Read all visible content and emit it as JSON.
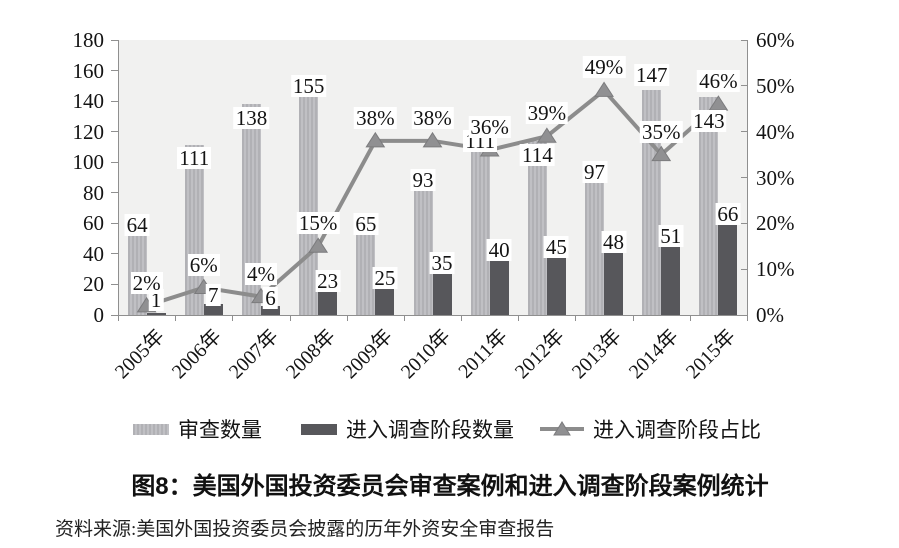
{
  "figure": {
    "title": "图8：美国外国投资委员会审查案例和进入调查阶段案例统计",
    "source": "资料来源:美国外国投资委员会披露的历年外资安全审查报告"
  },
  "legend": [
    {
      "label": "审查数量",
      "swatch": "light-bar"
    },
    {
      "label": "进入调查阶段数量",
      "swatch": "dark-bar"
    },
    {
      "label": "进入调查阶段占比",
      "swatch": "line-triangle-marker"
    }
  ],
  "chart_data": {
    "type": "bar",
    "subtype": "combo-bar-line",
    "categories": [
      "2005年",
      "2006年",
      "2007年",
      "2008年",
      "2009年",
      "2010年",
      "2011年",
      "2012年",
      "2013年",
      "2014年",
      "2015年"
    ],
    "series": [
      {
        "name": "审查数量",
        "type": "bar",
        "axis": "left",
        "values": [
          64,
          111,
          138,
          155,
          65,
          93,
          111,
          114,
          97,
          147,
          143
        ],
        "value_labels": [
          "64",
          "111",
          "138",
          "155",
          "65",
          "93",
          "111",
          "114",
          "97",
          "147",
          "143"
        ],
        "label_dy": [
          8,
          13,
          14,
          8,
          8,
          7,
          -4,
          14,
          5,
          -15,
          24
        ]
      },
      {
        "name": "进入调查阶段数量",
        "type": "bar",
        "axis": "left",
        "values": [
          1,
          7,
          6,
          23,
          25,
          35,
          40,
          45,
          48,
          51,
          66
        ],
        "value_labels": [
          "1",
          "7",
          "6",
          "23",
          "25",
          "35",
          "40",
          "45",
          "48",
          "51",
          "66"
        ],
        "label_dy": [
          -13,
          -9,
          -8,
          1,
          1,
          1,
          -4,
          1,
          0,
          -1,
          0
        ]
      },
      {
        "name": "进入调查阶段占比",
        "type": "line",
        "axis": "right",
        "values": [
          2,
          6,
          4,
          15,
          38,
          38,
          36,
          39,
          49,
          35,
          46
        ],
        "value_labels": [
          "2%",
          "6%",
          "4%",
          "15%",
          "38%",
          "38%",
          "36%",
          "39%",
          "49%",
          "35%",
          "46%"
        ],
        "label_dy": -23
      }
    ],
    "left_axis": {
      "min": 0,
      "max": 180,
      "step": 20,
      "tick_labels": [
        "0",
        "20",
        "40",
        "60",
        "80",
        "100",
        "120",
        "140",
        "160",
        "180"
      ]
    },
    "right_axis": {
      "min": 0,
      "max": 60,
      "step": 10,
      "tick_labels": [
        "0%",
        "10%",
        "20%",
        "30%",
        "40%",
        "50%",
        "60%"
      ]
    },
    "grid": false,
    "legend_position": "bottom",
    "colors": {
      "bar_light": "#b7b7bb",
      "bar_dark": "#57575b",
      "line": "#8c8c8c",
      "marker_fill": "#90９092",
      "marker_fill_hex": "#909092",
      "marker_stroke": "#7b7b7d",
      "plot_background": "#f1f1f0",
      "axis": "#8f8f8f",
      "label_text": "#141414",
      "label_background": "#ffffff"
    }
  }
}
